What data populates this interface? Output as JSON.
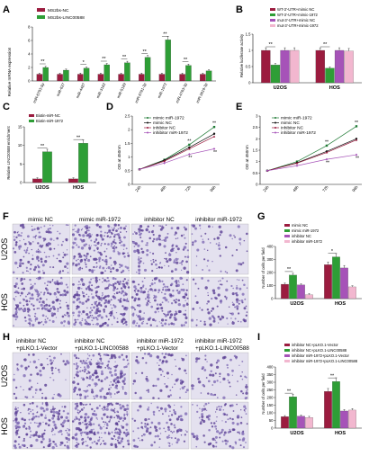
{
  "colors": {
    "maroon": "#9b1c3f",
    "green": "#2e9e36",
    "purple": "#a653b8",
    "pink": "#f2b7cf",
    "cyan": "#d7f1f4",
    "black": "#111111",
    "darkgreen": "#1f7a35"
  },
  "panels": {
    "A": {
      "letter": "A",
      "legend": [
        "MS2bs-NC",
        "MS2bs-LINC00588"
      ],
      "ylabel": "Relative mRNA expression"
    },
    "B": {
      "letter": "B",
      "legend": [
        "WT-3'-UTR+mimic NC",
        "WT-3'-UTR+mimic-1972",
        "mut-3'-UTR+mimic NC",
        "mut-3'-UTR+mimic-1972"
      ],
      "ylabel": "Relative luciferase activity"
    },
    "C": {
      "letter": "C",
      "legend": [
        "Biotin-miR-NC",
        "Biotin-miR-1972"
      ],
      "ylabel": "Relative LINC00588 enrichment"
    },
    "D": {
      "letter": "D",
      "legend": [
        "mimic miR-1972",
        "mimic NC",
        "inhibitor NC",
        "inhibitor miR-1972"
      ],
      "ylabel": "OD at 450nm"
    },
    "E": {
      "letter": "E",
      "legend": [
        "mimic miR-1972",
        "mimic NC",
        "inhibitor NC",
        "inhibitor miR-1972"
      ],
      "ylabel": "OD at 450nm"
    },
    "F": {
      "letter": "F",
      "columns": [
        "mimic NC",
        "mimic miR-1972",
        "inhibitor NC",
        "inhibitor miR-1972"
      ],
      "rows": [
        "U2OS",
        "HOS"
      ]
    },
    "G": {
      "letter": "G",
      "legend": [
        "mimic NC",
        "mimic miR-1972",
        "inhibitor NC",
        "inhibitor miR-1972"
      ],
      "ylabel": "Number of cells per field"
    },
    "H": {
      "letter": "H",
      "columns": [
        [
          "inhibitor NC",
          "+pLKO.1-Vector"
        ],
        [
          "inhibitor NC",
          "+pLKO.1-LINC00588"
        ],
        [
          "inhibitor miR-1972",
          "+pLKO.1-Vector"
        ],
        [
          "inhibitor miR-1972",
          "+pLKO.1-LINC00588"
        ]
      ],
      "rows": [
        "U2OS",
        "HOS"
      ]
    },
    "I": {
      "letter": "I",
      "legend": [
        "inhibitor NC+pLKO.1-Vector",
        "inhibitor NC+pLKO.1-LINC00588",
        "inhibitor miR-1972+pLKO.1-Vector",
        "inhibitor miR-1972+pLKO.1-LINC00588"
      ],
      "ylabel": "Number of cells per field"
    }
  },
  "chart_data": [
    {
      "panel": "A",
      "type": "bar",
      "categories": [
        "miR-6793-5p",
        "miR-637",
        "miR-4487",
        "miR-3162",
        "miR-5189",
        "miR-6781-3p",
        "miR-1972",
        "miR-4763-3p",
        "miR-3619-3p"
      ],
      "series": [
        {
          "name": "MS2bs-NC",
          "values": [
            1,
            1,
            1,
            1,
            1,
            1,
            1,
            1,
            1
          ]
        },
        {
          "name": "MS2bs-LINC00588",
          "values": [
            2.0,
            1.6,
            1.9,
            2.4,
            2.7,
            3.5,
            6.1,
            2.3,
            1.5
          ]
        }
      ],
      "sig": [
        "**",
        "",
        "*",
        "**",
        "**",
        "**",
        "**",
        "**",
        ""
      ],
      "yticks": [
        0,
        2,
        4,
        6,
        8
      ],
      "ylim": [
        0,
        8
      ]
    },
    {
      "panel": "B",
      "type": "bar",
      "categories": [
        "U2OS",
        "HOS"
      ],
      "series": [
        {
          "name": "WT-3'-UTR+mimic NC",
          "values": [
            1.0,
            1.0
          ]
        },
        {
          "name": "WT-3'-UTR+mimic-1972",
          "values": [
            0.55,
            0.45
          ]
        },
        {
          "name": "mut-3'-UTR+mimic NC",
          "values": [
            1.0,
            1.0
          ]
        },
        {
          "name": "mut-3'-UTR+mimic-1972",
          "values": [
            1.0,
            0.98
          ]
        }
      ],
      "sig": [
        "**",
        "**"
      ],
      "yticks": [
        0,
        0.5,
        1.0,
        1.5
      ],
      "ylim": [
        0,
        1.5
      ]
    },
    {
      "panel": "C",
      "type": "bar",
      "categories": [
        "U2OS",
        "HOS"
      ],
      "series": [
        {
          "name": "Biotin-miR-NC",
          "values": [
            1,
            1
          ]
        },
        {
          "name": "Biotin-miR-1972",
          "values": [
            8.3,
            10.6
          ]
        }
      ],
      "sig": [
        "**",
        "**"
      ],
      "yticks": [
        0,
        5,
        10,
        15
      ],
      "ylim": [
        0,
        15
      ]
    },
    {
      "panel": "D",
      "type": "line",
      "x": [
        "24h",
        "48h",
        "72h",
        "96h"
      ],
      "series": [
        {
          "name": "mimic miR-1972",
          "values": [
            0.55,
            0.9,
            1.45,
            2.1
          ]
        },
        {
          "name": "mimic NC",
          "values": [
            0.55,
            0.88,
            1.35,
            1.85
          ]
        },
        {
          "name": "inhibitor NC",
          "values": [
            0.55,
            0.85,
            1.3,
            1.75
          ]
        },
        {
          "name": "inhibitor miR-1972",
          "values": [
            0.55,
            0.78,
            1.1,
            1.3
          ]
        }
      ],
      "sig": [
        "",
        "",
        "**",
        "**"
      ],
      "yticks": [
        0.0,
        0.5,
        1.0,
        1.5,
        2.0,
        2.5
      ],
      "ylim": [
        0,
        2.5
      ]
    },
    {
      "panel": "E",
      "type": "line",
      "x": [
        "24h",
        "48h",
        "72h",
        "96h"
      ],
      "series": [
        {
          "name": "mimic miR-1972",
          "values": [
            0.6,
            1.0,
            1.7,
            2.55
          ]
        },
        {
          "name": "mimic NC",
          "values": [
            0.6,
            0.95,
            1.45,
            2.0
          ]
        },
        {
          "name": "inhibitor NC",
          "values": [
            0.6,
            0.93,
            1.4,
            1.95
          ]
        },
        {
          "name": "inhibitor miR-1972",
          "values": [
            0.6,
            0.82,
            1.1,
            1.3
          ]
        }
      ],
      "sig": [
        "",
        "",
        "**",
        "**"
      ],
      "yticks": [
        0.0,
        0.5,
        1.0,
        1.5,
        2.0,
        2.5,
        3.0
      ],
      "ylim": [
        0,
        3.0
      ]
    },
    {
      "panel": "G",
      "type": "bar",
      "categories": [
        "U2OS",
        "HOS"
      ],
      "series": [
        {
          "name": "mimic NC",
          "values": [
            110,
            260
          ]
        },
        {
          "name": "mimic miR-1972",
          "values": [
            180,
            320
          ]
        },
        {
          "name": "inhibitor NC",
          "values": [
            105,
            235
          ]
        },
        {
          "name": "inhibitor miR-1972",
          "values": [
            30,
            90
          ]
        }
      ],
      "sig": [
        "**",
        "*"
      ],
      "yticks": [
        0,
        100,
        200,
        300,
        400
      ],
      "ylim": [
        0,
        400
      ]
    },
    {
      "panel": "I",
      "type": "bar",
      "categories": [
        "U2OS",
        "HOS"
      ],
      "series": [
        {
          "name": "inhibitor NC+pLKO.1-Vector",
          "values": [
            75,
            240
          ]
        },
        {
          "name": "inhibitor NC+pLKO.1-LINC00588",
          "values": [
            205,
            305
          ]
        },
        {
          "name": "inhibitor miR-1972+pLKO.1-Vector",
          "values": [
            78,
            112
          ]
        },
        {
          "name": "inhibitor miR-1972+pLKO.1-LINC00588",
          "values": [
            70,
            118
          ]
        }
      ],
      "sig": [
        "**",
        "**"
      ],
      "yticks": [
        0,
        50,
        100,
        150,
        200,
        250,
        300,
        350,
        400
      ],
      "ylim": [
        0,
        400
      ]
    }
  ]
}
